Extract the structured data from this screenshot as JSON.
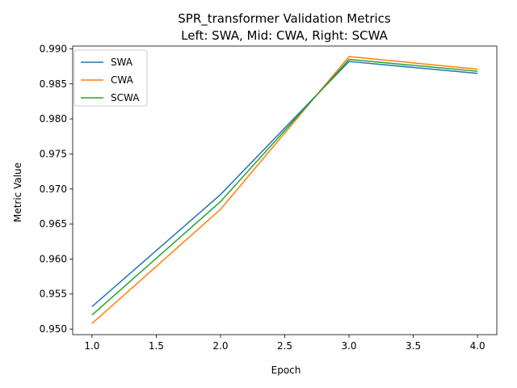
{
  "chart_data": {
    "type": "line",
    "title": "SPR_transformer Validation Metrics",
    "subtitle": "Left: SWA, Mid: CWA, Right: SCWA",
    "xlabel": "Epoch",
    "ylabel": "Metric Value",
    "x": [
      1.0,
      2.0,
      3.0,
      4.0
    ],
    "xlim": [
      0.85,
      4.15
    ],
    "ylim": [
      0.9492,
      0.9904
    ],
    "xticks": [
      "1.0",
      "1.5",
      "2.0",
      "2.5",
      "3.0",
      "3.5",
      "4.0"
    ],
    "yticks": [
      "0.950",
      "0.955",
      "0.960",
      "0.965",
      "0.970",
      "0.975",
      "0.980",
      "0.985",
      "0.990"
    ],
    "grid": false,
    "legend_position": "top-left",
    "series": [
      {
        "name": "SWA",
        "color": "#1f77b4",
        "values": [
          0.9532,
          0.9692,
          0.9882,
          0.9865
        ]
      },
      {
        "name": "CWA",
        "color": "#ff7f0e",
        "values": [
          0.9508,
          0.9671,
          0.9889,
          0.9871
        ]
      },
      {
        "name": "SCWA",
        "color": "#2ca02c",
        "values": [
          0.952,
          0.9682,
          0.9885,
          0.9868
        ]
      }
    ]
  }
}
